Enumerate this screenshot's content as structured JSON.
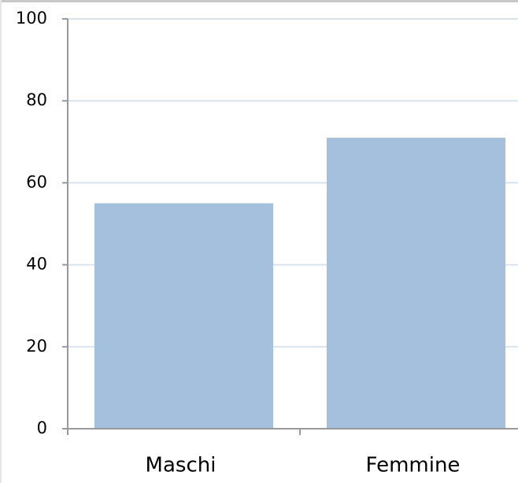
{
  "chart_data": {
    "type": "bar",
    "categories": [
      "Maschi",
      "Femmine"
    ],
    "values": [
      55,
      71
    ],
    "color": "#a5c0dc",
    "ylim": [
      0,
      100
    ],
    "yticks": [
      0,
      20,
      40,
      60,
      80,
      100
    ],
    "grid": true
  }
}
